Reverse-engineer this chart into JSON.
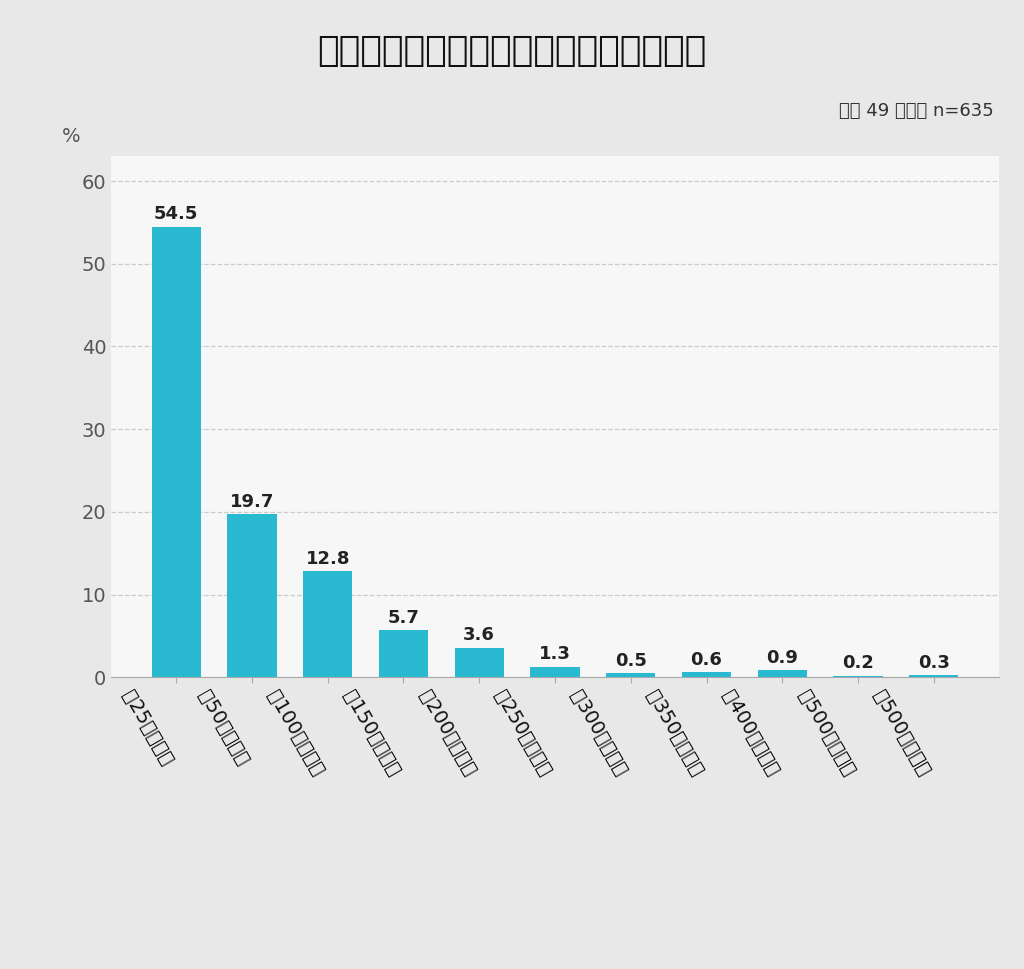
{
  "title": "相続のため行政書士などに依頼した費用",
  "subtitle": "平均 49 万円／ n=635",
  "categories": [
    "～25万円未満",
    "～50万円未満",
    "～100万円未満",
    "～150万円未満",
    "～200万円未満",
    "～250万円未満",
    "～300万円未満",
    "～350万円未満",
    "～400万円未満",
    "～500万円未満",
    "～500万円以上"
  ],
  "values": [
    54.5,
    19.7,
    12.8,
    5.7,
    3.6,
    1.3,
    0.5,
    0.6,
    0.9,
    0.2,
    0.3
  ],
  "bar_color": "#29b9d0",
  "background_color": "#e8e8e8",
  "plot_background": "#f7f7f7",
  "ylabel": "%",
  "ylim": [
    0,
    63
  ],
  "yticks": [
    0,
    10,
    20,
    30,
    40,
    50,
    60
  ],
  "grid_color": "#cccccc",
  "title_fontsize": 26,
  "subtitle_fontsize": 13,
  "tick_fontsize": 14,
  "value_fontsize": 13
}
